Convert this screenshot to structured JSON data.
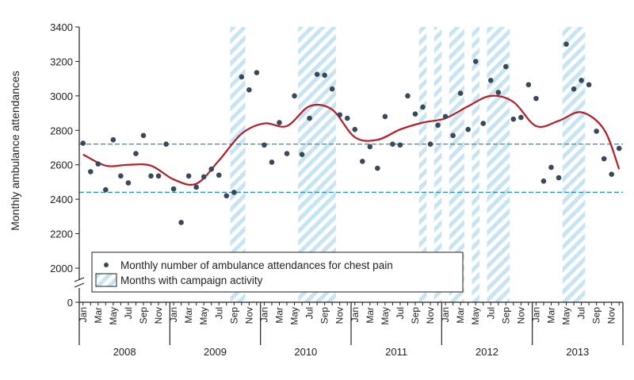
{
  "chart_data": {
    "type": "scatter",
    "ylabel": "Monthly ambulance attendances",
    "yticks": [
      0,
      2000,
      2200,
      2400,
      2600,
      2800,
      3000,
      3200,
      3400
    ],
    "ylim_upper": [
      2000,
      3400
    ],
    "axis_break": true,
    "years": [
      "2008",
      "2009",
      "2010",
      "2011",
      "2012",
      "2013"
    ],
    "month_labels": [
      "Jan",
      "Mar",
      "May",
      "Jul",
      "Sep",
      "Nov"
    ],
    "months_per_year": 12,
    "legend": {
      "position": "bottom-left",
      "points_label": "Monthly number of ambulance attendances for chest pain",
      "campaign_label": "Months with campaign activity"
    },
    "reference_lines": [
      2720,
      2440
    ],
    "campaign_months": [
      20,
      21,
      29,
      30,
      31,
      32,
      33,
      45,
      47,
      49,
      50,
      52,
      54,
      55,
      56,
      64,
      65,
      66
    ],
    "series": [
      {
        "values": [
          2725,
          2560,
          2605,
          2455,
          2745,
          2535,
          2495,
          2665,
          2770,
          2535,
          2535,
          2720,
          2460,
          2265,
          2535,
          2470,
          2530,
          2575,
          2540,
          2420,
          2440,
          3110,
          3035,
          3135,
          2715,
          2615,
          2845,
          2665,
          3000,
          2660,
          2870,
          3125,
          3120,
          3040,
          2890,
          2870,
          2805,
          2620,
          2705,
          2580,
          2880,
          2720,
          2715,
          3000,
          2895,
          2935,
          2720,
          2830,
          2880,
          2770,
          3015,
          2805,
          3200,
          2840,
          3090,
          3020,
          3170,
          2865,
          2875,
          3065,
          2985,
          2505,
          2585,
          2525,
          3300,
          3040,
          3090,
          3065,
          2795,
          2635,
          2545,
          2695
        ]
      }
    ],
    "trend_line": {
      "x_months": [
        0,
        3,
        6,
        9,
        12,
        15,
        18,
        21,
        24,
        27,
        30,
        33,
        36,
        39,
        42,
        45,
        48,
        51,
        54,
        57,
        60,
        63,
        66,
        69,
        71
      ],
      "values": [
        2660,
        2595,
        2600,
        2595,
        2515,
        2490,
        2625,
        2780,
        2840,
        2825,
        2940,
        2920,
        2760,
        2745,
        2805,
        2845,
        2870,
        2940,
        3000,
        2965,
        2825,
        2855,
        2905,
        2805,
        2575
      ]
    },
    "colors": {
      "points": "#37495b",
      "trend": "#b51e24",
      "reference": "#2e8fb7",
      "campaign": "#c6e4f4",
      "axis": "#222222"
    }
  }
}
